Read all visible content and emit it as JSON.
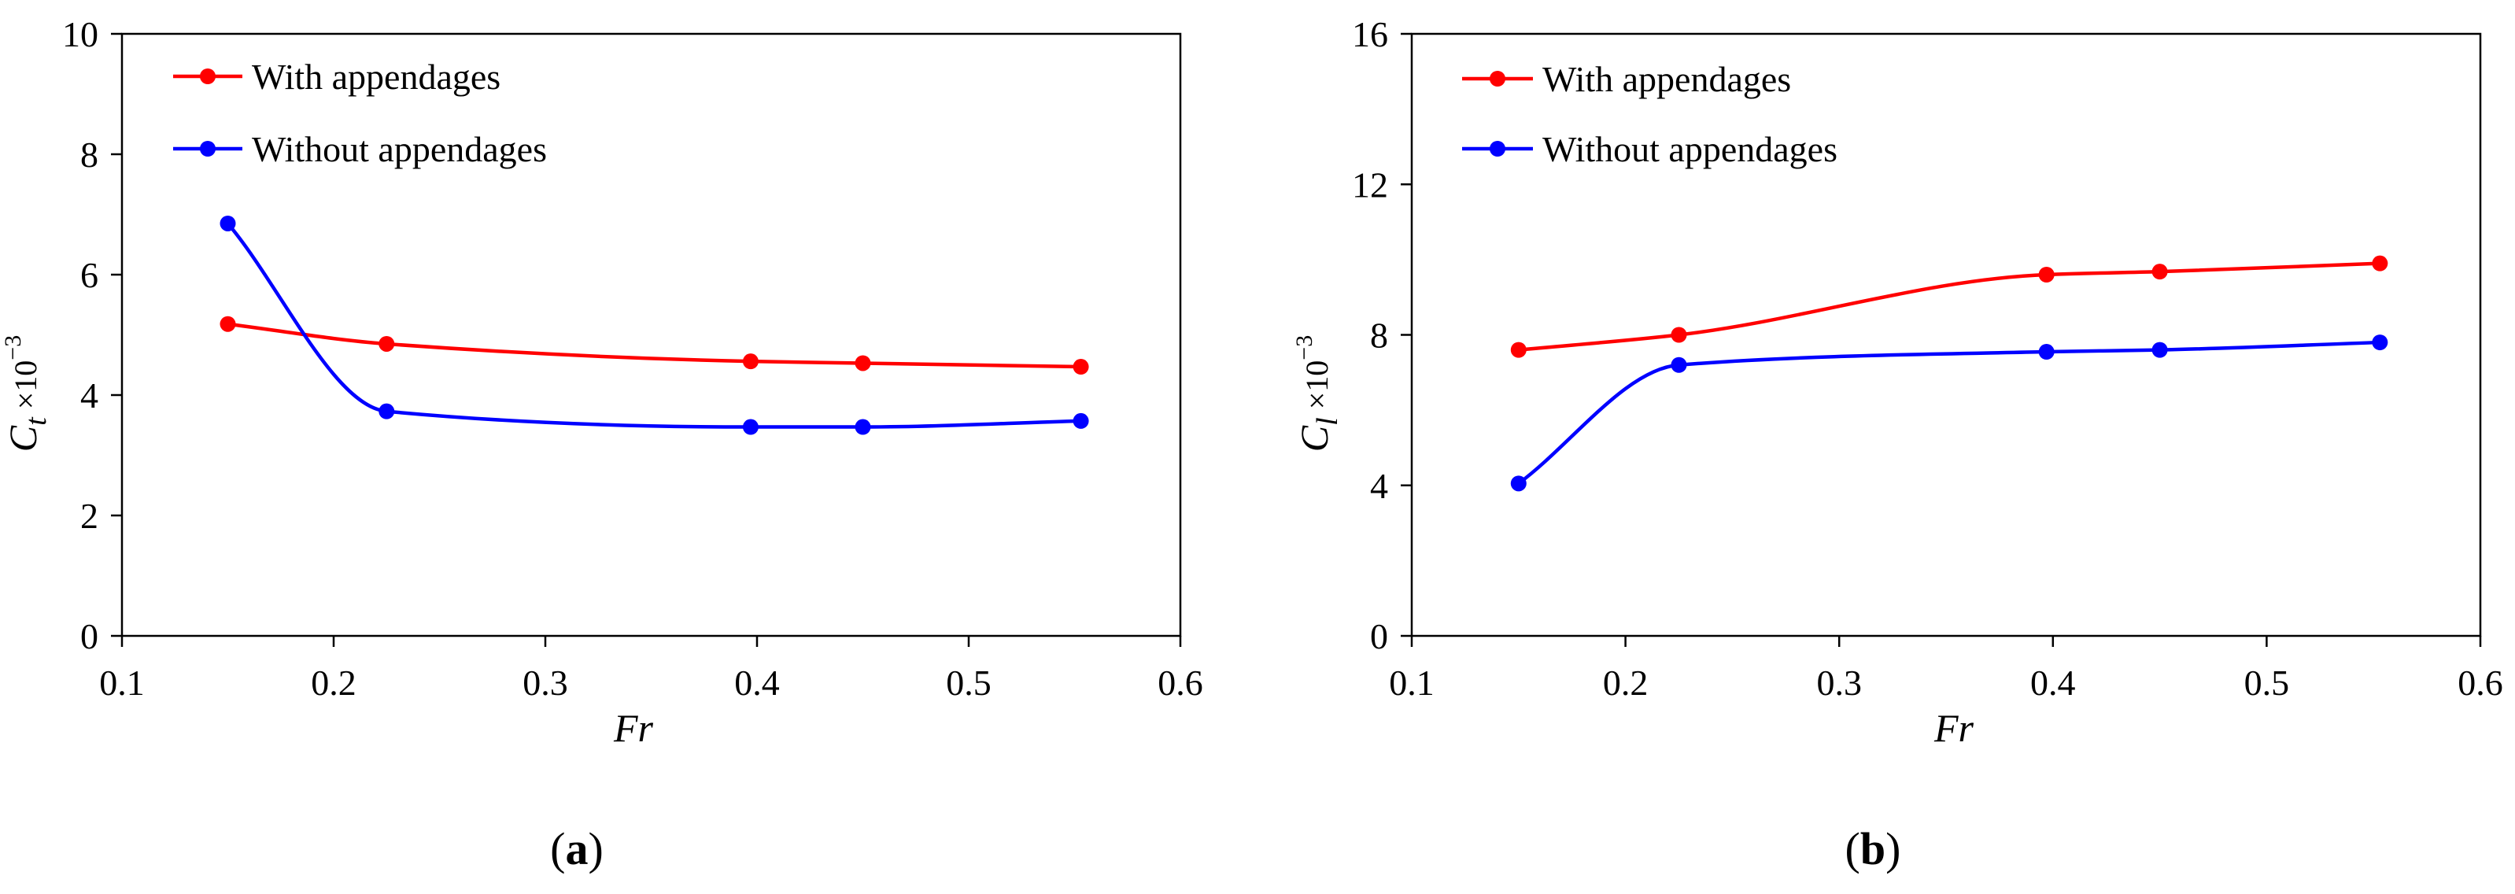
{
  "chart_data": [
    {
      "type": "line",
      "panel_label": "a",
      "title": "",
      "xlabel": "Fr",
      "ylabel": {
        "symbol": "C",
        "subscript": "t",
        "suffix": " ×10",
        "exponent": "−3"
      },
      "xlim": [
        0.1,
        0.6
      ],
      "ylim": [
        0,
        10
      ],
      "xticks": [
        "0.1",
        "0.2",
        "0.3",
        "0.4",
        "0.5",
        "0.6"
      ],
      "yticks": [
        "0",
        "2",
        "4",
        "6",
        "8",
        "10"
      ],
      "xtick_values": [
        0.1,
        0.2,
        0.3,
        0.4,
        0.5,
        0.6
      ],
      "ytick_values": [
        0,
        2,
        4,
        6,
        8,
        10
      ],
      "legend_position": "top-left",
      "series": [
        {
          "name": "With appendages",
          "color": "#ff0000",
          "x": [
            0.15,
            0.225,
            0.397,
            0.45,
            0.553
          ],
          "y": [
            5.18,
            4.85,
            4.56,
            4.53,
            4.47
          ]
        },
        {
          "name": "Without appendages",
          "color": "#0000ff",
          "x": [
            0.15,
            0.225,
            0.397,
            0.45,
            0.553
          ],
          "y": [
            6.85,
            3.73,
            3.47,
            3.47,
            3.57
          ]
        }
      ]
    },
    {
      "type": "line",
      "panel_label": "b",
      "title": "",
      "xlabel": "Fr",
      "ylabel": {
        "symbol": "C",
        "subscript": "l",
        "suffix": " ×10",
        "exponent": "−3"
      },
      "xlim": [
        0.1,
        0.6
      ],
      "ylim": [
        0,
        16
      ],
      "xticks": [
        "0.1",
        "0.2",
        "0.3",
        "0.4",
        "0.5",
        "0.6"
      ],
      "yticks": [
        "0",
        "4",
        "8",
        "12",
        "16"
      ],
      "xtick_values": [
        0.1,
        0.2,
        0.3,
        0.4,
        0.5,
        0.6
      ],
      "ytick_values": [
        0,
        4,
        8,
        12,
        16
      ],
      "legend_position": "top-left",
      "series": [
        {
          "name": "With appendages",
          "color": "#ff0000",
          "x": [
            0.15,
            0.225,
            0.397,
            0.45,
            0.553
          ],
          "y": [
            7.6,
            8.0,
            9.6,
            9.68,
            9.9
          ]
        },
        {
          "name": "Without appendages",
          "color": "#0000ff",
          "x": [
            0.15,
            0.225,
            0.397,
            0.45,
            0.553
          ],
          "y": [
            4.05,
            7.2,
            7.55,
            7.6,
            7.8
          ]
        }
      ]
    }
  ]
}
